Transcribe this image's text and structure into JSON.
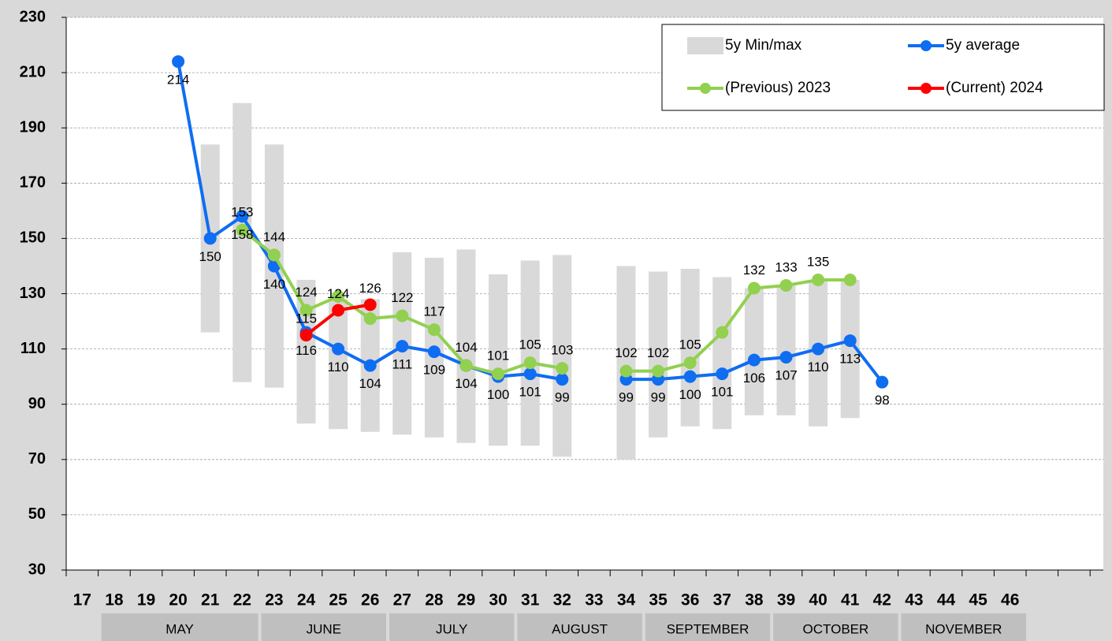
{
  "chart_data": {
    "type": "line",
    "categories": [
      "17",
      "18",
      "19",
      "20",
      "21",
      "22",
      "23",
      "24",
      "25",
      "26",
      "27",
      "28",
      "29",
      "30",
      "31",
      "32",
      "33",
      "34",
      "35",
      "36",
      "37",
      "38",
      "39",
      "40",
      "41",
      "42",
      "43",
      "44",
      "45",
      "46",
      null,
      null
    ],
    "month_groups": [
      {
        "name": "MAY",
        "from": "18",
        "to": "22"
      },
      {
        "name": "JUNE",
        "from": "23",
        "to": "26"
      },
      {
        "name": "JULY",
        "from": "27",
        "to": "30"
      },
      {
        "name": "AUGUST",
        "from": "31",
        "to": "34"
      },
      {
        "name": "SEPTEMBER",
        "from": "35",
        "to": "38"
      },
      {
        "name": "OCTOBER",
        "from": "39",
        "to": "42"
      },
      {
        "name": "NOVEMBER",
        "from": "43",
        "to": "46"
      }
    ],
    "ylim": [
      30,
      230
    ],
    "yticks": [
      30,
      50,
      70,
      90,
      110,
      130,
      150,
      170,
      190,
      210,
      230
    ],
    "grid": true,
    "legend": "top-right",
    "series": [
      {
        "name": "5y Min/max",
        "type": "range",
        "color": "#d9d9d9",
        "low": [
          null,
          null,
          null,
          null,
          116,
          98,
          96,
          83,
          81,
          80,
          79,
          78,
          76,
          75,
          75,
          71,
          null,
          70,
          78,
          82,
          81,
          86,
          86,
          82,
          85,
          null,
          null,
          null,
          null,
          null,
          null,
          null
        ],
        "high": [
          null,
          null,
          null,
          null,
          184,
          199,
          184,
          135,
          128,
          128,
          145,
          143,
          146,
          137,
          142,
          144,
          null,
          140,
          138,
          139,
          136,
          132,
          133,
          135,
          135,
          null,
          null,
          null,
          null,
          null,
          null,
          null
        ]
      },
      {
        "name": "5y average",
        "type": "line",
        "color": "#0f6df2",
        "values": [
          null,
          null,
          null,
          214,
          150,
          158,
          140,
          116,
          110,
          104,
          111,
          109,
          104,
          100,
          101,
          99,
          null,
          99,
          99,
          100,
          101,
          106,
          107,
          110,
          113,
          98,
          null,
          null,
          null,
          null,
          null,
          null
        ]
      },
      {
        "name": "(Previous) 2023",
        "type": "line",
        "color": "#92d050",
        "values": [
          null,
          null,
          null,
          null,
          null,
          153,
          144,
          124,
          129,
          121,
          122,
          117,
          104,
          101,
          105,
          103,
          null,
          102,
          102,
          105,
          116,
          132,
          133,
          135,
          135,
          null,
          null,
          null,
          null,
          null,
          null,
          null
        ],
        "value_labels": [
          null,
          null,
          null,
          null,
          null,
          "153",
          "144",
          "124",
          null,
          null,
          "122",
          "117",
          "104",
          "101",
          "105",
          "103",
          null,
          "102",
          "102",
          "105",
          null,
          "132",
          "133",
          "135",
          null,
          null,
          null,
          null,
          null,
          null,
          null,
          null
        ]
      },
      {
        "name": "(Current) 2024",
        "type": "line",
        "color": "#ff0000",
        "values": [
          null,
          null,
          null,
          null,
          null,
          null,
          null,
          115,
          124,
          126,
          null,
          null,
          null,
          null,
          null,
          null,
          null,
          null,
          null,
          null,
          null,
          null,
          null,
          null,
          null,
          null,
          null,
          null,
          null,
          null,
          null,
          null
        ]
      }
    ]
  }
}
